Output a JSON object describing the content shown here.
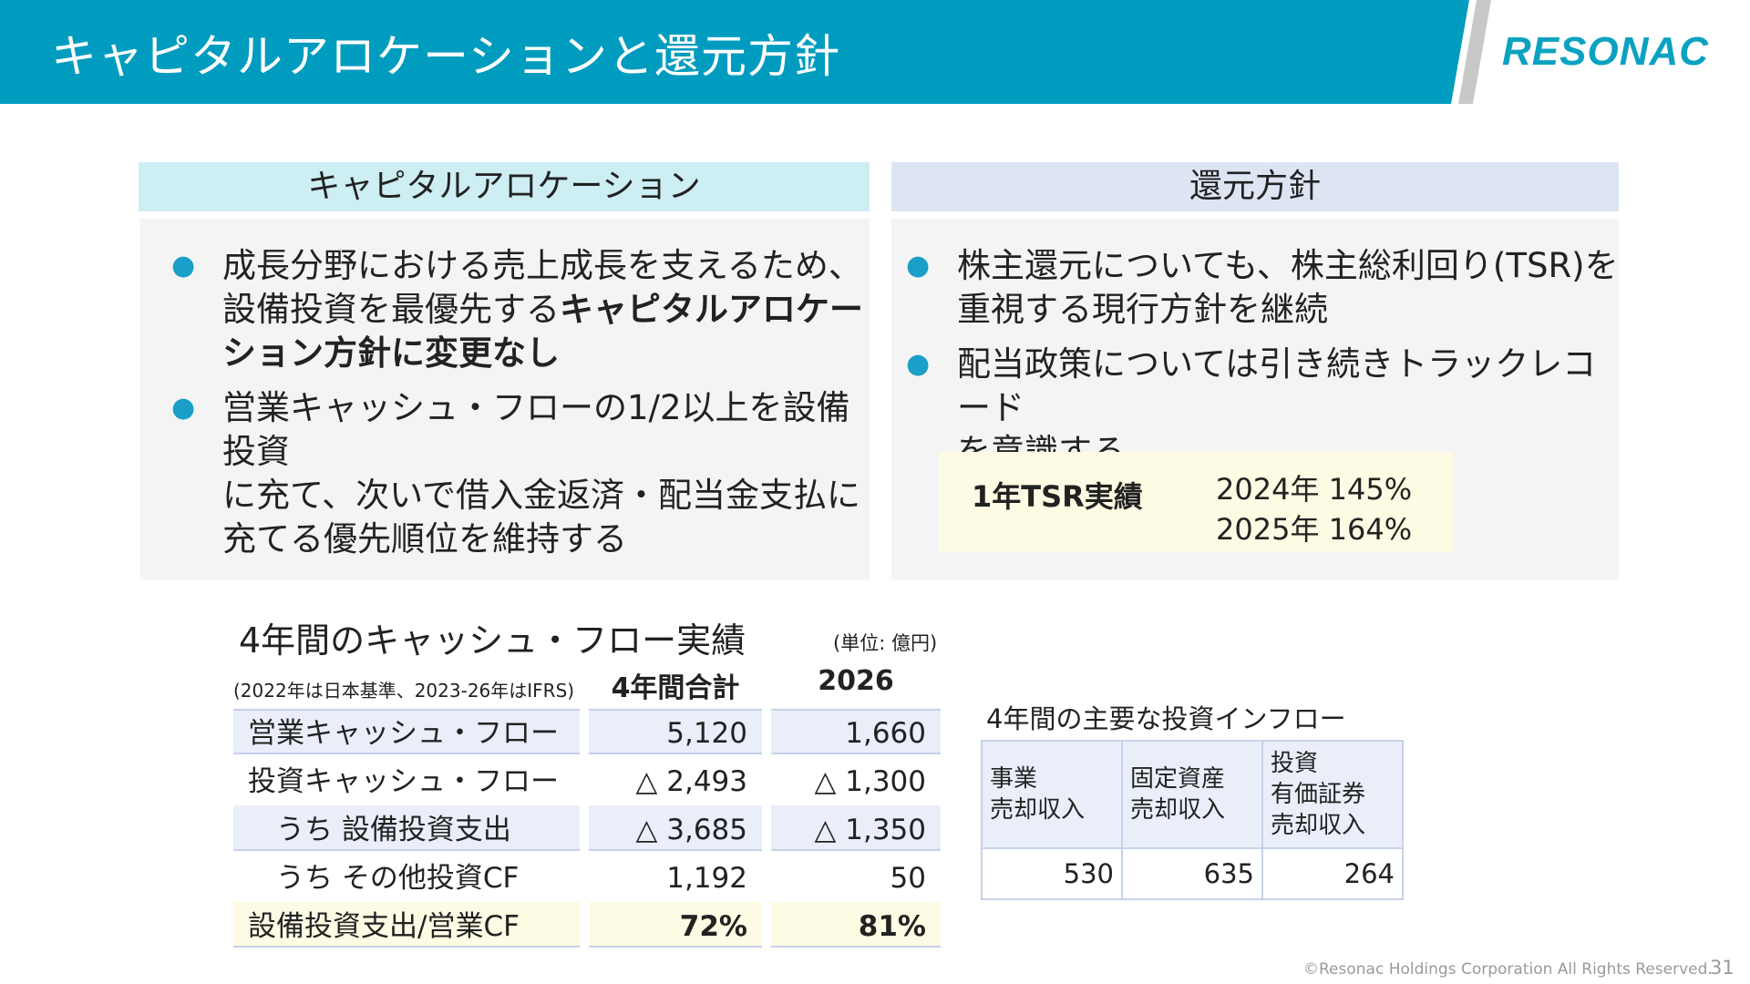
{
  "header": {
    "title": "キャピタルアロケーションと還元方針",
    "logo": "RESONAC",
    "band_color": "#009cbf"
  },
  "left_panel": {
    "heading": "キャピタルアロケーション",
    "heading_bg": "#cdeef3",
    "bullets": [
      {
        "lines": [
          "成長分野における売上成長を支えるため、",
          "設備投資を最優先する"
        ],
        "bold_tail": "キャピタルアロケー",
        "bold_line": "ション方針に変更なし"
      },
      {
        "lines": [
          "営業キャッシュ・フローの1/2以上を設備投資",
          "に充て、次いで借入金返済・配当金支払に",
          "充てる優先順位を維持する"
        ]
      }
    ]
  },
  "right_panel": {
    "heading": "還元方針",
    "heading_bg": "#dde5f3",
    "bullets": [
      {
        "lines": [
          "株主還元についても、株主総利回り(TSR)を",
          "重視する現行方針を継続"
        ]
      },
      {
        "lines": [
          "配当政策については引き続きトラックレコード",
          "を意識する"
        ]
      }
    ],
    "tsr": {
      "label": "1年TSR実績",
      "values": [
        "2024年 145%",
        "2025年 164%"
      ]
    }
  },
  "cashflow": {
    "title": "4年間のキャッシュ・フロー実績",
    "unit": "(単位: 億円)",
    "basis": "(2022年は日本基準、2023-26年はIFRS)",
    "columns": [
      "4年間合計",
      "2026"
    ],
    "rows": [
      {
        "label": "営業キャッシュ・フロー",
        "v1": "5,120",
        "v2": "1,660",
        "shade": "blue"
      },
      {
        "label": "投資キャッシュ・フロー",
        "v1": "△ 2,493",
        "v2": "△ 1,300",
        "shade": "none"
      },
      {
        "label": "　うち 設備投資支出",
        "v1": "△ 3,685",
        "v2": "△ 1,350",
        "shade": "blue"
      },
      {
        "label": "　うち その他投資CF",
        "v1": "1,192",
        "v2": "50",
        "shade": "none"
      },
      {
        "label": "設備投資支出/営業CF",
        "v1": "72%",
        "v2": "81%",
        "shade": "yellow"
      }
    ]
  },
  "investment_inflow": {
    "title": "4年間の主要な投資インフロー",
    "headers": [
      [
        "事業",
        "売却収入"
      ],
      [
        "固定資産",
        "売却収入"
      ],
      [
        "投資",
        "有価証券",
        "売却収入"
      ]
    ],
    "values": [
      "530",
      "635",
      "264"
    ]
  },
  "footer": {
    "copyright": "©Resonac Holdings Corporation  All Rights Reserved.",
    "page": "31"
  }
}
